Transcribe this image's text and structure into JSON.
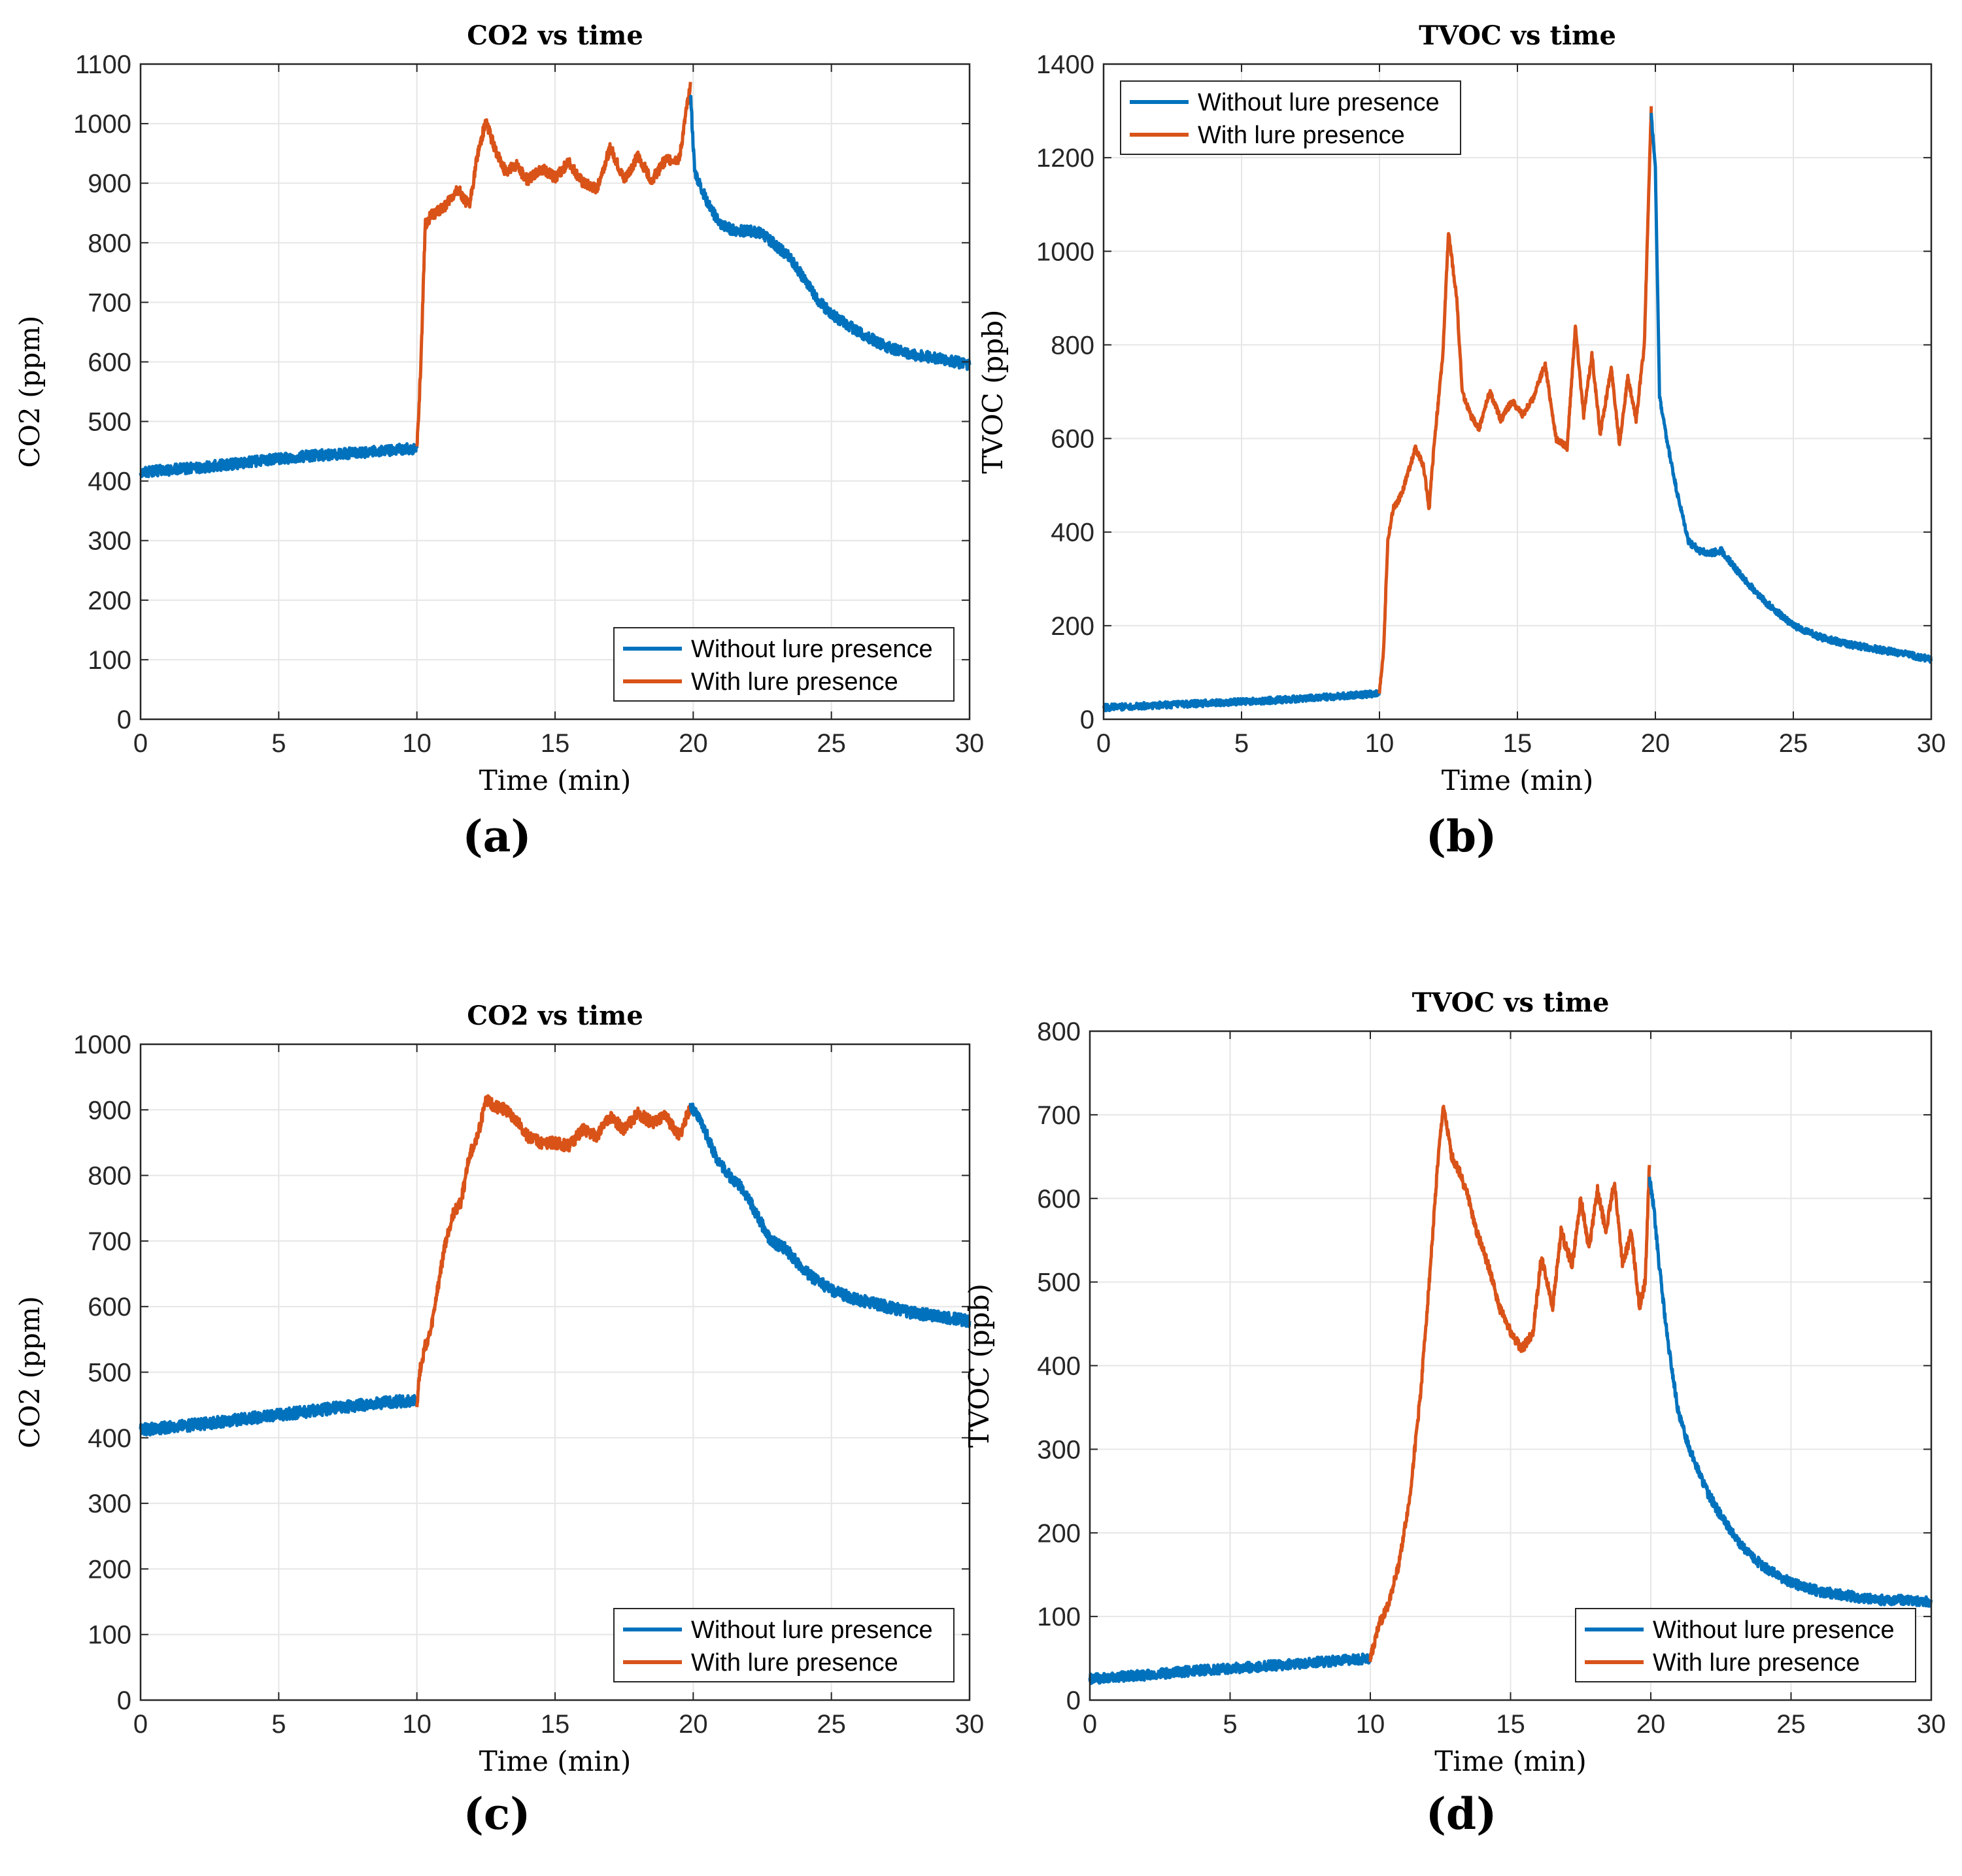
{
  "figure": {
    "colors": {
      "without": "#0072BD",
      "with": "#D95319",
      "grid": "#e6e6e6",
      "axis": "#262626"
    }
  },
  "chart_data": [
    {
      "id": "a",
      "type": "line",
      "caption": "(a)",
      "title": "CO2 vs time",
      "xlabel": "Time (min)",
      "ylabel": "CO2 (ppm)",
      "xlim": [
        0,
        30
      ],
      "ylim": [
        0,
        1100
      ],
      "xticks": [
        0,
        5,
        10,
        15,
        20,
        25,
        30
      ],
      "yticks": [
        0,
        100,
        200,
        300,
        400,
        500,
        600,
        700,
        800,
        900,
        1000,
        1100
      ],
      "grid": true,
      "legend": {
        "position": "bottom-right",
        "entries": [
          "Without lure presence",
          "With lure presence"
        ]
      },
      "noise": 9,
      "series": [
        {
          "name": "Without lure presence",
          "color": "#0072BD",
          "x": [
            0,
            2,
            4,
            6,
            8,
            10
          ],
          "y": [
            415,
            422,
            432,
            442,
            448,
            455
          ]
        },
        {
          "name": "With lure presence",
          "color": "#D95319",
          "x": [
            10,
            10.15,
            10.3,
            10.5,
            11,
            11.5,
            11.9,
            12.2,
            12.5,
            12.8,
            13.2,
            13.6,
            14,
            14.5,
            15,
            15.5,
            16,
            16.5,
            17,
            17.5,
            18,
            18.5,
            19,
            19.5,
            19.9
          ],
          "y": [
            455,
            600,
            830,
            845,
            860,
            890,
            860,
            950,
            1005,
            960,
            920,
            930,
            905,
            925,
            910,
            935,
            900,
            890,
            960,
            905,
            945,
            905,
            940,
            940,
            1070
          ]
        },
        {
          "name": "Without lure presence",
          "color": "#0072BD",
          "x": [
            19.9,
            20.05,
            20.3,
            20.6,
            21,
            21.5,
            22,
            22.5,
            23,
            23.5,
            24,
            24.5,
            25,
            26,
            27,
            28,
            29,
            30
          ],
          "y": [
            1050,
            920,
            890,
            860,
            830,
            820,
            820,
            815,
            795,
            775,
            740,
            705,
            680,
            650,
            625,
            612,
            605,
            595
          ]
        }
      ]
    },
    {
      "id": "b",
      "type": "line",
      "caption": "(b)",
      "title": "TVOC vs time",
      "xlabel": "Time (min)",
      "ylabel": "TVOC (ppb)",
      "xlim": [
        0,
        30
      ],
      "ylim": [
        0,
        1400
      ],
      "xticks": [
        0,
        5,
        10,
        15,
        20,
        25,
        30
      ],
      "yticks": [
        0,
        200,
        400,
        600,
        800,
        1000,
        1200,
        1400
      ],
      "grid": true,
      "legend": {
        "position": "top-left",
        "entries": [
          "Without lure presence",
          "With lure presence"
        ]
      },
      "noise": 7,
      "series": [
        {
          "name": "Without lure presence",
          "color": "#0072BD",
          "x": [
            0,
            2,
            4,
            6,
            8,
            10
          ],
          "y": [
            25,
            30,
            35,
            40,
            47,
            55
          ]
        },
        {
          "name": "With lure presence",
          "color": "#D95319",
          "x": [
            10,
            10.15,
            10.3,
            10.5,
            10.8,
            11,
            11.3,
            11.6,
            11.8,
            12,
            12.3,
            12.5,
            12.8,
            13,
            13.3,
            13.6,
            14,
            14.4,
            14.8,
            15.2,
            15.6,
            16,
            16.4,
            16.8,
            17.1,
            17.4,
            17.7,
            18,
            18.4,
            18.7,
            19,
            19.3,
            19.6,
            19.85
          ],
          "y": [
            55,
            150,
            380,
            450,
            480,
            520,
            580,
            540,
            450,
            600,
            780,
            1040,
            900,
            700,
            650,
            620,
            700,
            640,
            680,
            650,
            690,
            760,
            600,
            580,
            840,
            650,
            780,
            610,
            750,
            590,
            730,
            640,
            800,
            1310
          ]
        },
        {
          "name": "Without lure presence",
          "color": "#0072BD",
          "x": [
            19.85,
            20,
            20.15,
            20.4,
            20.8,
            21.2,
            21.6,
            22,
            22.4,
            22.8,
            23.2,
            24,
            25,
            26,
            27,
            28,
            29,
            30
          ],
          "y": [
            1290,
            1180,
            690,
            600,
            480,
            380,
            360,
            355,
            360,
            330,
            300,
            250,
            200,
            175,
            160,
            150,
            140,
            128
          ]
        }
      ]
    },
    {
      "id": "c",
      "type": "line",
      "caption": "(c)",
      "title": "CO2 vs time",
      "xlabel": "Time (min)",
      "ylabel": "CO2 (ppm)",
      "xlim": [
        0,
        30
      ],
      "ylim": [
        0,
        1000
      ],
      "xticks": [
        0,
        5,
        10,
        15,
        20,
        25,
        30
      ],
      "yticks": [
        0,
        100,
        200,
        300,
        400,
        500,
        600,
        700,
        800,
        900,
        1000
      ],
      "grid": true,
      "legend": {
        "position": "bottom-right",
        "entries": [
          "Without lure presence",
          "With lure presence"
        ]
      },
      "noise": 9,
      "series": [
        {
          "name": "Without lure presence",
          "color": "#0072BD",
          "x": [
            0,
            2,
            4,
            6,
            8,
            10
          ],
          "y": [
            412,
            420,
            430,
            440,
            450,
            458
          ]
        },
        {
          "name": "With lure presence",
          "color": "#D95319",
          "x": [
            10,
            10.1,
            10.3,
            10.5,
            10.8,
            11,
            11.3,
            11.6,
            11.9,
            12.2,
            12.5,
            12.8,
            13.2,
            13.6,
            14,
            14.5,
            15,
            15.5,
            16,
            16.5,
            17,
            17.5,
            18,
            18.5,
            19,
            19.5,
            19.9
          ],
          "y": [
            450,
            500,
            540,
            560,
            640,
            690,
            740,
            760,
            830,
            860,
            915,
            905,
            900,
            885,
            860,
            850,
            850,
            845,
            870,
            860,
            890,
            870,
            895,
            880,
            890,
            860,
            905
          ]
        },
        {
          "name": "Without lure presence",
          "color": "#0072BD",
          "x": [
            19.9,
            20.3,
            20.8,
            21.3,
            21.8,
            22.3,
            22.8,
            23.3,
            23.8,
            24.3,
            25,
            26,
            27,
            28,
            29,
            30
          ],
          "y": [
            905,
            880,
            830,
            800,
            780,
            740,
            700,
            690,
            665,
            645,
            625,
            610,
            600,
            590,
            585,
            578
          ]
        }
      ]
    },
    {
      "id": "d",
      "type": "line",
      "caption": "(d)",
      "title": "TVOC vs time",
      "xlabel": "Time (min)",
      "ylabel": "TVOC (ppb)",
      "xlim": [
        0,
        30
      ],
      "ylim": [
        0,
        800
      ],
      "xticks": [
        0,
        5,
        10,
        15,
        20,
        25,
        30
      ],
      "yticks": [
        0,
        100,
        200,
        300,
        400,
        500,
        600,
        700,
        800
      ],
      "grid": true,
      "legend": {
        "position": "bottom-right",
        "entries": [
          "Without lure presence",
          "With lure presence"
        ]
      },
      "noise": 6,
      "series": [
        {
          "name": "Without lure presence",
          "color": "#0072BD",
          "x": [
            0,
            2,
            4,
            6,
            8,
            10
          ],
          "y": [
            25,
            30,
            36,
            40,
            45,
            50
          ]
        },
        {
          "name": "With lure presence",
          "color": "#D95319",
          "x": [
            10,
            10.3,
            10.6,
            11,
            11.4,
            11.8,
            12.1,
            12.4,
            12.6,
            12.9,
            13.2,
            13.5,
            13.8,
            14.2,
            14.6,
            15,
            15.4,
            15.8,
            16.1,
            16.5,
            16.8,
            17.2,
            17.5,
            17.8,
            18.1,
            18.4,
            18.7,
            19,
            19.3,
            19.6,
            19.8,
            19.95
          ],
          "y": [
            50,
            90,
            110,
            160,
            240,
            370,
            500,
            640,
            710,
            650,
            630,
            600,
            560,
            520,
            470,
            440,
            420,
            440,
            530,
            470,
            560,
            520,
            600,
            540,
            610,
            560,
            620,
            520,
            560,
            470,
            500,
            640
          ]
        },
        {
          "name": "Without lure presence",
          "color": "#0072BD",
          "x": [
            19.95,
            20.1,
            20.3,
            20.6,
            21,
            21.5,
            22,
            22.5,
            23,
            23.5,
            24,
            24.5,
            25,
            26,
            27,
            28,
            29,
            30
          ],
          "y": [
            625,
            590,
            520,
            430,
            340,
            290,
            250,
            220,
            195,
            175,
            160,
            150,
            140,
            130,
            125,
            120,
            120,
            118
          ]
        }
      ]
    }
  ]
}
